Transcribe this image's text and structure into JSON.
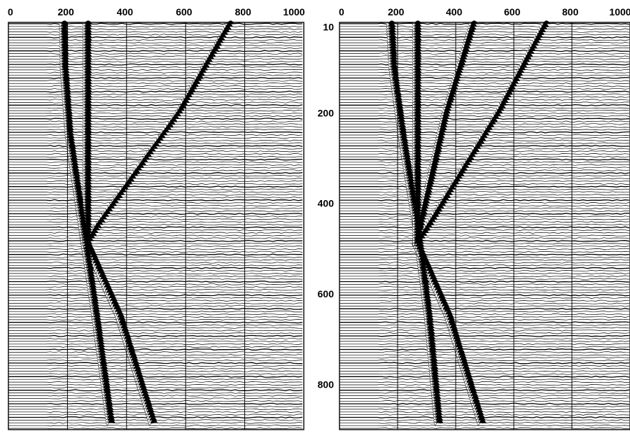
{
  "chart_data": [
    {
      "type": "seismic-wiggle",
      "panel": "left",
      "xlim": [
        0,
        1000
      ],
      "ylim": [
        0,
        900
      ],
      "x_ticks": [
        "0",
        "200",
        "400",
        "600",
        "800",
        "1000"
      ],
      "y_ticks": [],
      "grid": "vertical",
      "events": [
        {
          "id": "direct",
          "polarity": "positive",
          "points": [
            [
              190,
              0
            ],
            [
              193,
              100
            ],
            [
              210,
              250
            ],
            [
              255,
              450
            ],
            [
              300,
              650
            ],
            [
              350,
              890
            ]
          ]
        },
        {
          "id": "dipping-up",
          "polarity": "positive",
          "points": [
            [
              755,
              0
            ],
            [
              580,
              200
            ],
            [
              305,
              450
            ],
            [
              270,
              490
            ]
          ]
        },
        {
          "id": "dipping-down",
          "polarity": "positive",
          "points": [
            [
              270,
              490
            ],
            [
              380,
              650
            ],
            [
              495,
              890
            ]
          ]
        }
      ]
    },
    {
      "type": "seismic-wiggle",
      "panel": "right",
      "xlim": [
        0,
        1000
      ],
      "ylim": [
        0,
        900
      ],
      "x_ticks": [
        "0",
        "200",
        "400",
        "600",
        "800",
        "1000"
      ],
      "y_ticks": [
        "10",
        "200",
        "400",
        "600",
        "800"
      ],
      "grid": "vertical",
      "events": [
        {
          "id": "direct",
          "polarity": "positive",
          "points": [
            [
              180,
              0
            ],
            [
              188,
              100
            ],
            [
              220,
              250
            ],
            [
              270,
              450
            ],
            [
              310,
              650
            ],
            [
              345,
              890
            ]
          ]
        },
        {
          "id": "steep-up",
          "polarity": "positive",
          "points": [
            [
              465,
              0
            ],
            [
              370,
              200
            ],
            [
              280,
              450
            ],
            [
              268,
              490
            ]
          ]
        },
        {
          "id": "dipping-up",
          "polarity": "positive",
          "points": [
            [
              715,
              0
            ],
            [
              550,
              200
            ],
            [
              310,
              450
            ],
            [
              270,
              490
            ]
          ]
        },
        {
          "id": "dipping-down",
          "polarity": "positive",
          "points": [
            [
              270,
              490
            ],
            [
              380,
              650
            ],
            [
              495,
              890
            ]
          ]
        }
      ]
    }
  ]
}
